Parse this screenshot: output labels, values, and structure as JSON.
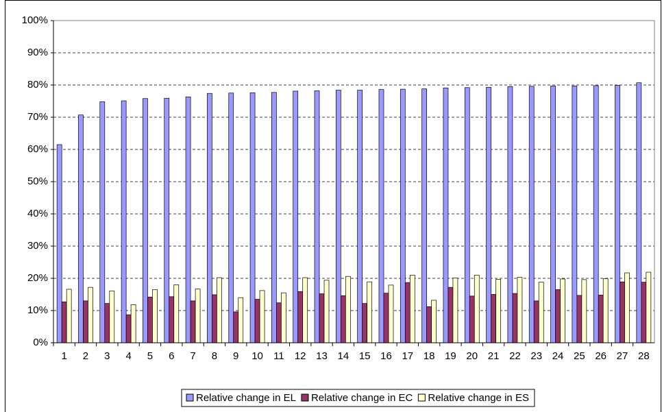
{
  "chart_data": {
    "type": "bar",
    "categories": [
      "1",
      "2",
      "3",
      "4",
      "5",
      "6",
      "7",
      "8",
      "9",
      "10",
      "11",
      "12",
      "13",
      "14",
      "15",
      "16",
      "17",
      "18",
      "19",
      "20",
      "21",
      "22",
      "23",
      "24",
      "25",
      "26",
      "27",
      "28"
    ],
    "series": [
      {
        "name": "Relative change in EL",
        "color": "#9999ff",
        "values": [
          61.5,
          70.7,
          74.8,
          75.1,
          75.8,
          75.9,
          76.3,
          77.4,
          77.5,
          77.6,
          77.7,
          78.1,
          78.2,
          78.4,
          78.4,
          78.6,
          78.7,
          78.8,
          79.1,
          79.2,
          79.3,
          79.5,
          79.6,
          79.7,
          79.7,
          79.8,
          79.9,
          80.7
        ]
      },
      {
        "name": "Relative change in EC",
        "color": "#993366",
        "values": [
          12.7,
          13.0,
          12.2,
          8.7,
          14.2,
          14.3,
          13.0,
          14.9,
          9.6,
          13.5,
          12.4,
          15.9,
          15.2,
          14.6,
          12.2,
          15.4,
          18.7,
          11.2,
          17.2,
          14.5,
          15.0,
          15.3,
          13.0,
          16.5,
          14.7,
          14.8,
          18.9,
          18.8
        ]
      },
      {
        "name": "Relative change in ES",
        "color": "#ffffcc",
        "values": [
          16.6,
          17.2,
          16.1,
          11.8,
          16.5,
          18.0,
          16.7,
          20.2,
          14.0,
          16.2,
          15.5,
          20.2,
          19.4,
          20.6,
          18.9,
          17.9,
          21.0,
          13.2,
          20.1,
          21.0,
          19.7,
          20.3,
          18.8,
          19.8,
          19.6,
          19.9,
          21.7,
          21.9
        ]
      }
    ],
    "ylim": [
      0,
      100
    ],
    "yticks": [
      {
        "value": 0,
        "label": "0%"
      },
      {
        "value": 10,
        "label": "10%"
      },
      {
        "value": 20,
        "label": "20%"
      },
      {
        "value": 30,
        "label": "30%"
      },
      {
        "value": 40,
        "label": "40%"
      },
      {
        "value": 50,
        "label": "50%"
      },
      {
        "value": 60,
        "label": "60%"
      },
      {
        "value": 70,
        "label": "70%"
      },
      {
        "value": 80,
        "label": "80%"
      },
      {
        "value": 90,
        "label": "90%"
      },
      {
        "value": 100,
        "label": "100%"
      }
    ],
    "grid": true,
    "legend": "bottom"
  }
}
